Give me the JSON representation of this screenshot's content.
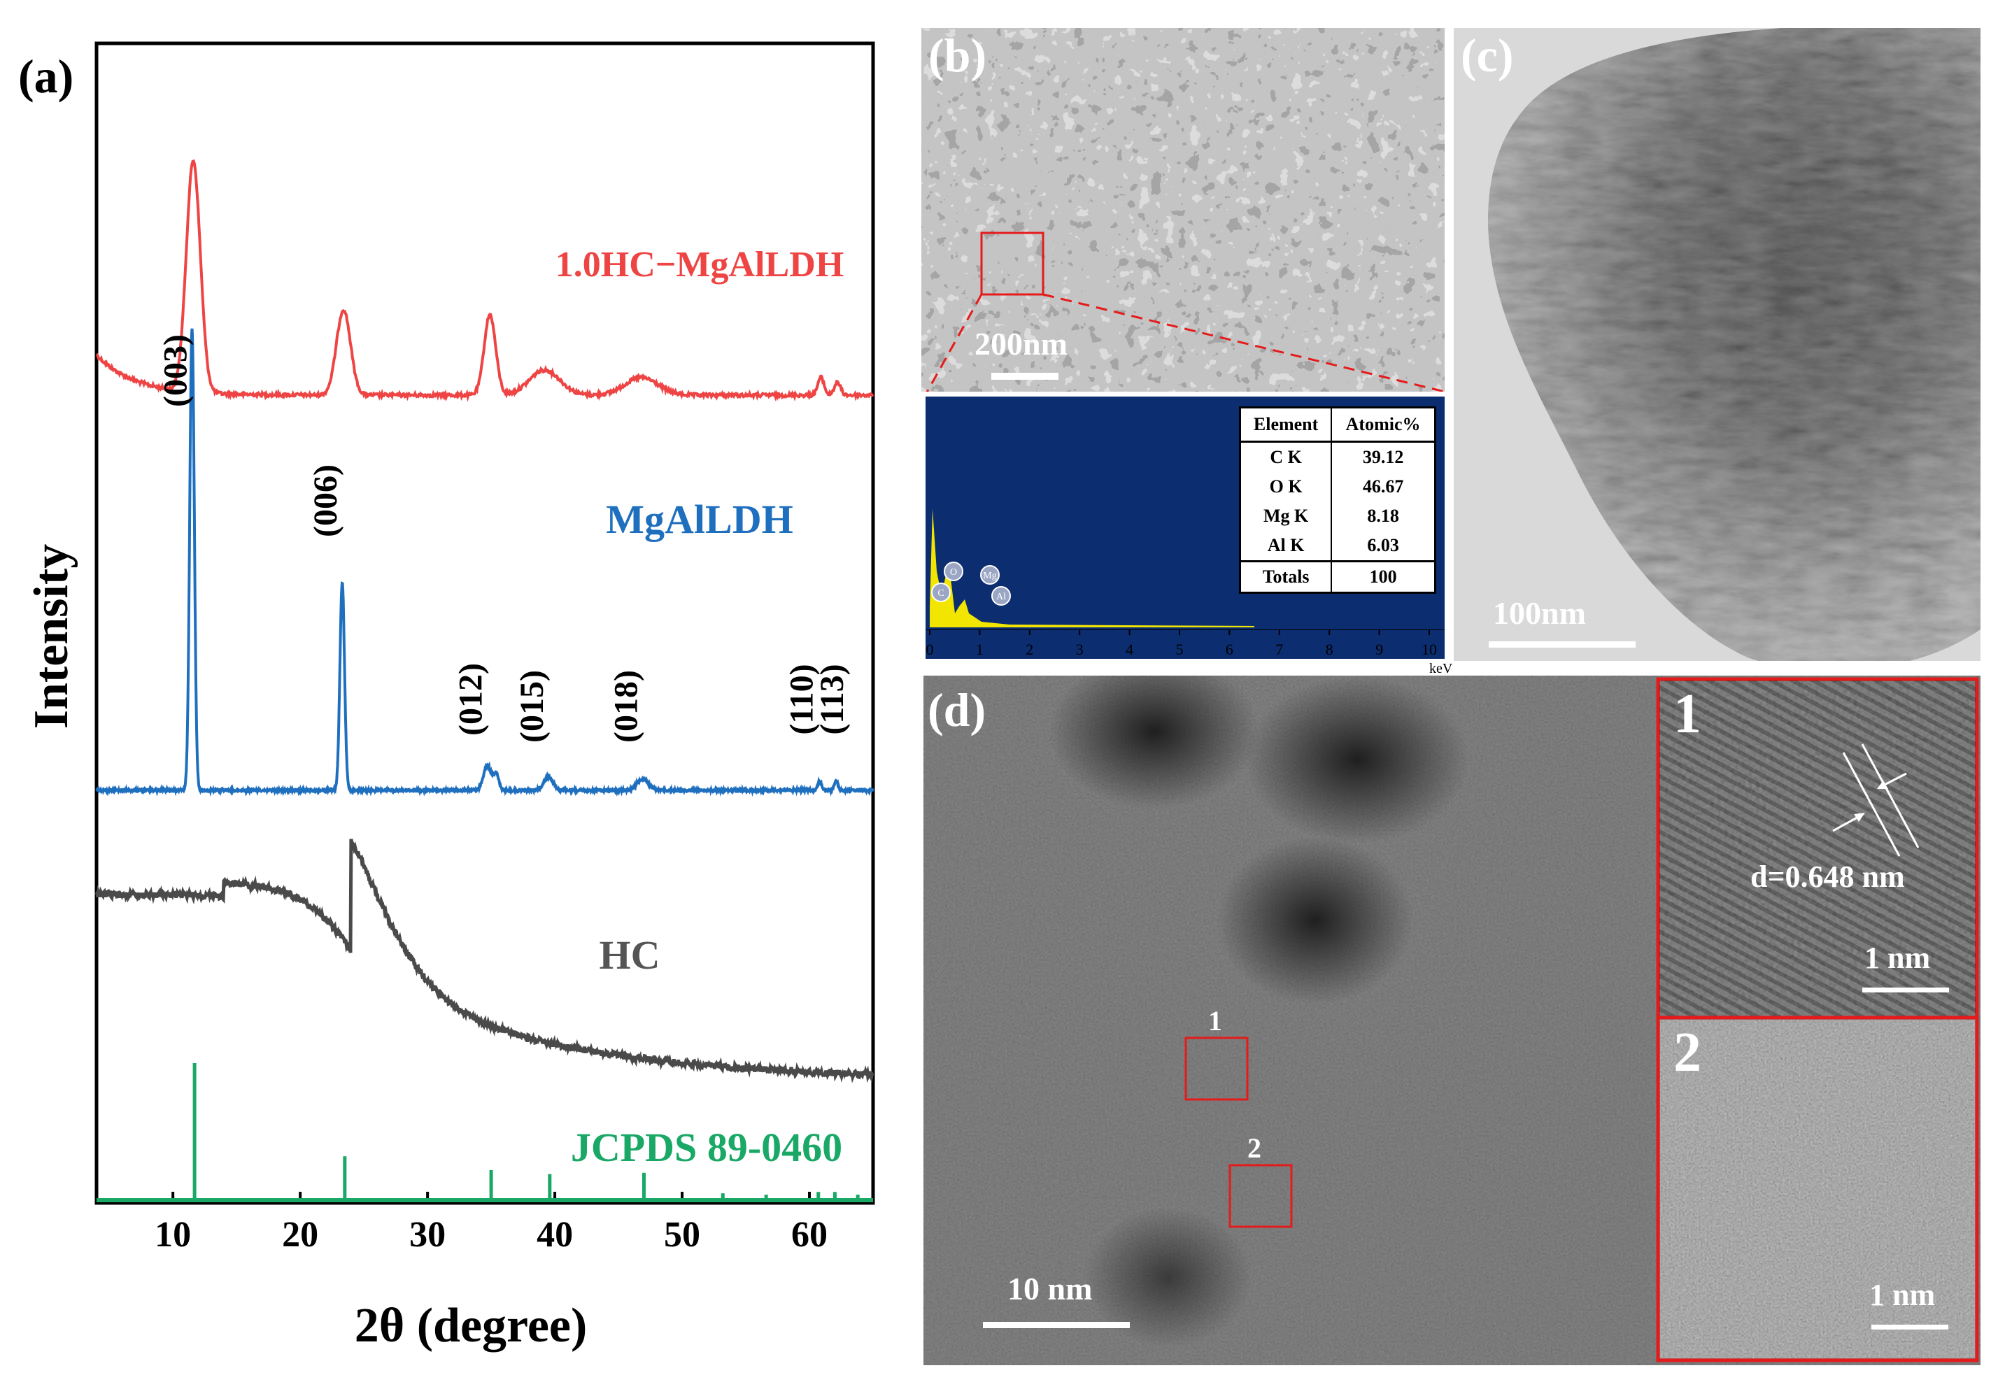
{
  "panel_labels": {
    "a": "(a)",
    "b": "(b)",
    "c": "(c)",
    "d": "(d)"
  },
  "chart_data": {
    "type": "line",
    "xlabel": "2θ (degree)",
    "ylabel": "Intensity",
    "xlim": [
      4,
      65
    ],
    "x_ticks": [
      10,
      20,
      30,
      40,
      50,
      60
    ],
    "x_tick_labels": [
      "10",
      "20",
      "30",
      "40",
      "50",
      "60"
    ],
    "series": [
      {
        "name": "1.0HC−MgAlLDH",
        "color": "#ee4444",
        "baseline": 0.72,
        "peaks": [
          [
            11.6,
            0.46,
            0.55
          ],
          [
            23.4,
            0.17,
            0.55
          ],
          [
            34.9,
            0.16,
            0.45
          ],
          [
            39.2,
            0.05,
            1.2
          ],
          [
            46.8,
            0.035,
            1.3
          ],
          [
            60.9,
            0.035,
            0.25
          ],
          [
            62.2,
            0.025,
            0.25
          ]
        ]
      },
      {
        "name": "MgAlLDH",
        "color": "#1f6fbf",
        "baseline": 0.0,
        "peaks": [
          [
            11.5,
            1.0,
            0.18
          ],
          [
            23.3,
            0.45,
            0.18
          ],
          [
            34.7,
            0.055,
            0.3
          ],
          [
            35.4,
            0.035,
            0.2
          ],
          [
            39.5,
            0.03,
            0.35
          ],
          [
            46.9,
            0.025,
            0.45
          ],
          [
            60.8,
            0.02,
            0.15
          ],
          [
            62.1,
            0.02,
            0.15
          ]
        ]
      },
      {
        "name": "HC",
        "color": "#4a4a4a",
        "description": "broad amorphous hump"
      },
      {
        "name": "JCPDS 89-0460",
        "color": "#1aa866",
        "sticks": [
          [
            11.7,
            1.0
          ],
          [
            23.5,
            0.32
          ],
          [
            35.0,
            0.22
          ],
          [
            39.6,
            0.19
          ],
          [
            47.0,
            0.2
          ],
          [
            53.2,
            0.05
          ],
          [
            56.6,
            0.04
          ],
          [
            60.7,
            0.06
          ],
          [
            62.0,
            0.06
          ],
          [
            63.8,
            0.04
          ]
        ]
      }
    ],
    "peak_labels": [
      {
        "text": "(003)",
        "x": 11.5
      },
      {
        "text": "(006)",
        "x": 23.3
      },
      {
        "text": "(012)",
        "x": 34.7
      },
      {
        "text": "(015)",
        "x": 39.5
      },
      {
        "text": "(018)",
        "x": 46.9
      },
      {
        "text": "(110)",
        "x": 60.8
      },
      {
        "text": "(113)",
        "x": 62.1
      }
    ]
  },
  "sem": {
    "scale_bar": "200nm"
  },
  "edx": {
    "x_axis_ticks": [
      "0",
      "1",
      "2",
      "3",
      "4",
      "5",
      "6",
      "7",
      "8",
      "9",
      "10"
    ],
    "x_unit": "keV",
    "peaks": [
      "C",
      "O",
      "Mg",
      "Al"
    ],
    "table_headers": [
      "Element",
      "Atomic%"
    ],
    "rows": [
      {
        "element": "C K",
        "value": "39.12"
      },
      {
        "element": "O K",
        "value": "46.67"
      },
      {
        "element": "Mg K",
        "value": "8.18"
      },
      {
        "element": "Al K",
        "value": "6.03"
      },
      {
        "element": "Totals",
        "value": "100"
      }
    ]
  },
  "tem": {
    "scale_bar": "100nm"
  },
  "hrtem": {
    "scale_bar": "10 nm",
    "box_labels": [
      "1",
      "2"
    ],
    "inset1": {
      "label": "1",
      "annotation": "d=0.648 nm",
      "scale_bar": "1 nm"
    },
    "inset2": {
      "label": "2",
      "scale_bar": "1 nm"
    }
  }
}
